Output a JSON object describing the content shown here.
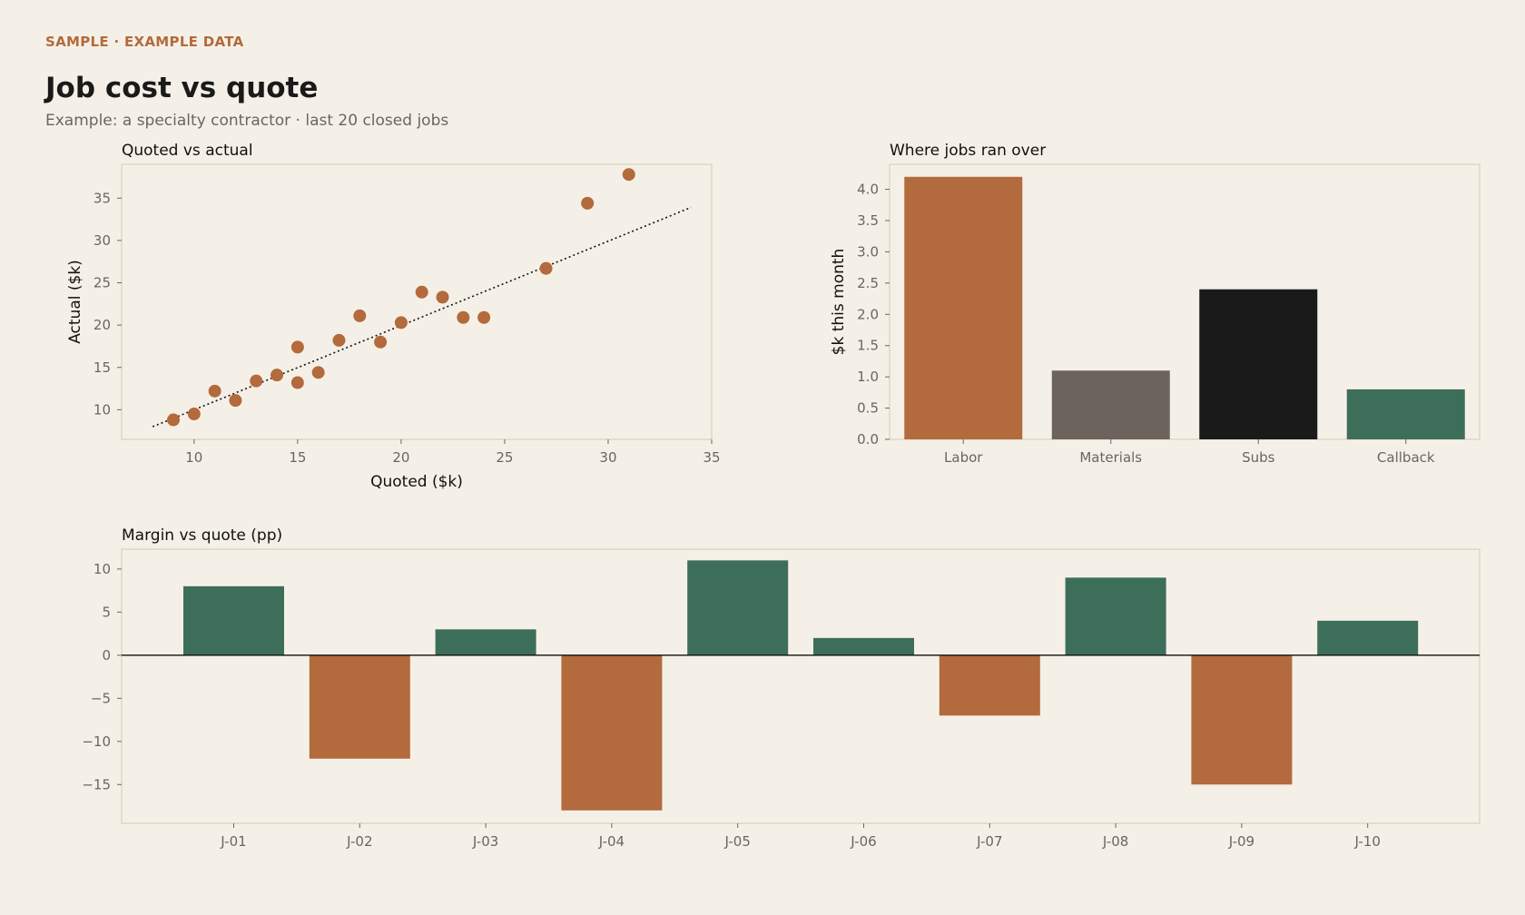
{
  "header": {
    "tag": "SAMPLE  ·  EXAMPLE DATA",
    "title": "Job cost vs quote",
    "subtitle": "Example: a specialty contractor  ·  last 20 closed jobs"
  },
  "colors": {
    "background": "#f5f0e7",
    "accent": "#b36a3d",
    "gray": "#6b635c",
    "black": "#1a1a1a",
    "green": "#3d6e5a",
    "frame": "#ddd7c3"
  },
  "chart_data": [
    {
      "type": "scatter",
      "title": "Quoted vs actual",
      "xlabel": "Quoted ($k)",
      "ylabel": "Actual ($k)",
      "xlim": [
        6.5,
        35
      ],
      "ylim": [
        6.5,
        39
      ],
      "xticks": [
        10,
        15,
        20,
        25,
        30,
        35
      ],
      "yticks": [
        10,
        15,
        20,
        25,
        30,
        35
      ],
      "points": [
        {
          "x": 9,
          "y": 8.8
        },
        {
          "x": 10,
          "y": 9.5
        },
        {
          "x": 11,
          "y": 12.2
        },
        {
          "x": 12,
          "y": 11.1
        },
        {
          "x": 13,
          "y": 13.4
        },
        {
          "x": 14,
          "y": 14.1
        },
        {
          "x": 15,
          "y": 17.4
        },
        {
          "x": 15,
          "y": 13.2
        },
        {
          "x": 16,
          "y": 14.4
        },
        {
          "x": 17,
          "y": 18.2
        },
        {
          "x": 18,
          "y": 21.1
        },
        {
          "x": 19,
          "y": 18.0
        },
        {
          "x": 20,
          "y": 20.3
        },
        {
          "x": 21,
          "y": 23.9
        },
        {
          "x": 22,
          "y": 23.3
        },
        {
          "x": 23,
          "y": 20.9
        },
        {
          "x": 24,
          "y": 20.9
        },
        {
          "x": 27,
          "y": 26.7
        },
        {
          "x": 29,
          "y": 34.4
        },
        {
          "x": 31,
          "y": 37.8
        }
      ],
      "trend_line": {
        "x": [
          8,
          34
        ],
        "y": [
          8.0,
          33.9
        ]
      },
      "grid": false
    },
    {
      "type": "bar",
      "title": "Where jobs ran over",
      "xlabel": "",
      "ylabel": "$k this month",
      "categories": [
        "Labor",
        "Materials",
        "Subs",
        "Callback"
      ],
      "values": [
        4.2,
        1.1,
        2.4,
        0.8
      ],
      "bar_colors": [
        "#b36a3d",
        "#6b635c",
        "#1a1a1a",
        "#3d6e5a"
      ],
      "ylim": [
        0,
        4.4
      ],
      "yticks": [
        "0.0",
        "0.5",
        "1.0",
        "1.5",
        "2.0",
        "2.5",
        "3.0",
        "3.5",
        "4.0"
      ],
      "grid": false
    },
    {
      "type": "bar",
      "title": "Margin vs quote (pp)",
      "xlabel": "",
      "ylabel": "",
      "categories": [
        "J-01",
        "J-02",
        "J-03",
        "J-04",
        "J-05",
        "J-06",
        "J-07",
        "J-08",
        "J-09",
        "J-10"
      ],
      "values": [
        8,
        -12,
        3,
        -18,
        11,
        2,
        -7,
        9,
        -15,
        4
      ],
      "positive_color": "#3d6e5a",
      "negative_color": "#b36a3d",
      "ylim": [
        -19.5,
        12.3
      ],
      "yticks": [
        10,
        5,
        0,
        -5,
        -10,
        -15
      ],
      "zero_line": true,
      "grid": false
    }
  ]
}
